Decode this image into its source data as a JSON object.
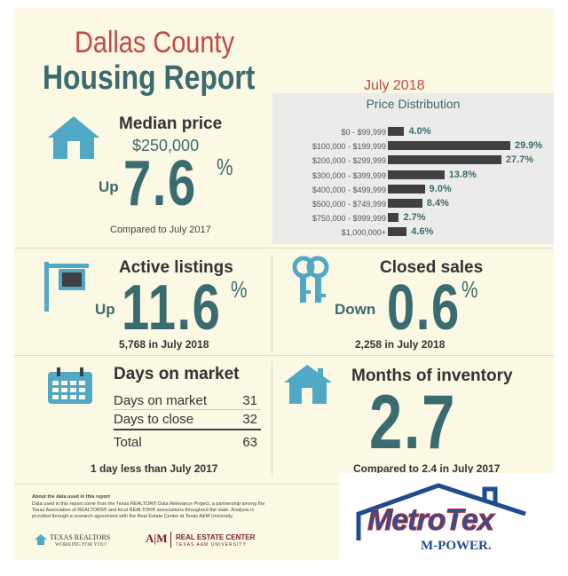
{
  "title": {
    "line1": "Dallas County",
    "line2": "Housing Report"
  },
  "date": "July 2018",
  "median": {
    "heading": "Median price",
    "price": "$250,000",
    "direction": "Up",
    "value": "7.6",
    "unit": "%",
    "compare": "Compared to July 2017"
  },
  "price_distribution": {
    "title": "Price Distribution",
    "rows": [
      {
        "label": "$0 - $99,999",
        "value": "4.0%",
        "pct": 4.0
      },
      {
        "label": "$100,000 - $199,999",
        "value": "29.9%",
        "pct": 29.9
      },
      {
        "label": "$200,000 - $299,999",
        "value": "27.7%",
        "pct": 27.7
      },
      {
        "label": "$300,000 - $399,999",
        "value": "13.8%",
        "pct": 13.8
      },
      {
        "label": "$400,000 - $499,999",
        "value": "9.0%",
        "pct": 9.0
      },
      {
        "label": "$500,000 - $749,999",
        "value": "8.4%",
        "pct": 8.4
      },
      {
        "label": "$750,000 - $999,999",
        "value": "2.7%",
        "pct": 2.7
      },
      {
        "label": "$1,000,000+",
        "value": "4.6%",
        "pct": 4.6
      }
    ]
  },
  "active": {
    "heading": "Active listings",
    "direction": "Up",
    "value": "11.6",
    "unit": "%",
    "detail": "5,768 in July 2018"
  },
  "closed": {
    "heading": "Closed sales",
    "direction": "Down",
    "value": "0.6",
    "unit": "%",
    "detail": "2,258 in July 2018"
  },
  "days": {
    "heading": "Days on market",
    "rows": [
      {
        "label": "Days on market",
        "value": "31"
      },
      {
        "label": "Days to close",
        "value": "32"
      }
    ],
    "total_label": "Total",
    "total_value": "63",
    "compare": "1 day less than July 2017"
  },
  "months": {
    "heading": "Months of inventory",
    "value": "2.7",
    "compare": "Compared to 2.4 in July 2017"
  },
  "footer": {
    "heading": "About the data used in this report",
    "text": "Data used in this report come from the Texas REALTOR® Data Relevance Project, a partnership among the Texas Association of REALTORS® and local REALTOR® associations throughout the state. Analysis is provided through a research agreement with the Real Estate Center at Texas A&M University.",
    "tr_name": "TEXAS REALTORS",
    "tr_tag": "WORKING FOR YOU!",
    "rec_name": "REAL ESTATE CENTER",
    "rec_sub": "TEXAS A&M UNIVERSITY"
  },
  "metrotex": {
    "name": "MetroTex",
    "tag": "M-POWER."
  },
  "colors": {
    "teal": "#3a6b6f",
    "red": "#c24a45",
    "bar": "#3f3f44",
    "panel": "#ebebea"
  }
}
